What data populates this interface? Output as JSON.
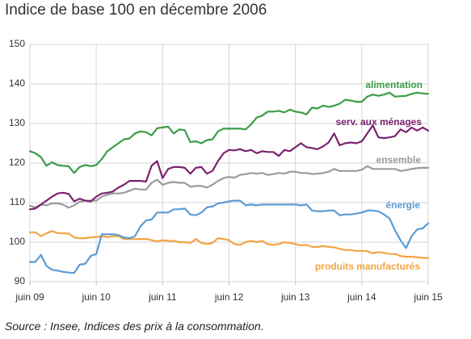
{
  "chart_data": {
    "type": "line",
    "title": "Indice de base 100 en décembre 2006",
    "source": "Source : Insee, Indices des prix à la consommation.",
    "xlabel": "",
    "ylabel": "",
    "ylim": [
      90,
      150
    ],
    "yticks": [
      90,
      100,
      110,
      120,
      130,
      140,
      150
    ],
    "xticks": [
      {
        "date": "2009-06",
        "label": "juin 09"
      },
      {
        "date": "2010-06",
        "label": "juin 10"
      },
      {
        "date": "2011-06",
        "label": "juin 11"
      },
      {
        "date": "2012-06",
        "label": "juin 12"
      },
      {
        "date": "2013-06",
        "label": "juin 13"
      },
      {
        "date": "2014-06",
        "label": "juin 14"
      },
      {
        "date": "2015-06",
        "label": "juin 15"
      }
    ],
    "grid": true,
    "legend": "inline-right",
    "x": [
      "2009-06",
      "2009-07",
      "2009-08",
      "2009-09",
      "2009-10",
      "2009-11",
      "2009-12",
      "2010-01",
      "2010-02",
      "2010-03",
      "2010-04",
      "2010-05",
      "2010-06",
      "2010-07",
      "2010-08",
      "2010-09",
      "2010-10",
      "2010-11",
      "2010-12",
      "2011-01",
      "2011-02",
      "2011-03",
      "2011-04",
      "2011-05",
      "2011-06",
      "2011-07",
      "2011-08",
      "2011-09",
      "2011-10",
      "2011-11",
      "2011-12",
      "2012-01",
      "2012-02",
      "2012-03",
      "2012-04",
      "2012-05",
      "2012-06",
      "2012-07",
      "2012-08",
      "2012-09",
      "2012-10",
      "2012-11",
      "2012-12",
      "2013-01",
      "2013-02",
      "2013-03",
      "2013-04",
      "2013-05",
      "2013-06",
      "2013-07",
      "2013-08",
      "2013-09",
      "2013-10",
      "2013-11",
      "2013-12",
      "2014-01",
      "2014-02",
      "2014-03",
      "2014-04",
      "2014-05",
      "2014-06",
      "2014-07",
      "2014-08",
      "2014-09",
      "2014-10",
      "2014-11",
      "2014-12",
      "2015-01",
      "2015-02",
      "2015-03",
      "2015-04",
      "2015-05",
      "2015-06"
    ],
    "series": [
      {
        "name": "alimentation",
        "color": "#3c9c48",
        "values": [
          123,
          122.5,
          121.5,
          119.3,
          120.2,
          119.5,
          119.3,
          119.2,
          117.5,
          119,
          119.5,
          119.2,
          119.5,
          121,
          123,
          124,
          125,
          126,
          126.2,
          127.5,
          128,
          127.8,
          127,
          128.8,
          129,
          129.2,
          127.5,
          128.5,
          128.3,
          125.3,
          125.5,
          125,
          125.8,
          126,
          128,
          128.7,
          128.7,
          128.7,
          128.7,
          128.5,
          129.8,
          131.5,
          132,
          133,
          133,
          133.2,
          132.8,
          133.5,
          133,
          132.8,
          132.3,
          134,
          133.8,
          134.5,
          134.2,
          134.5,
          135,
          136,
          135.8,
          135.5,
          135.5,
          136.8,
          137.3,
          137,
          137.3,
          137.8,
          136.8,
          136.9,
          137,
          137.5,
          137.8,
          137.6,
          137.5
        ]
      },
      {
        "name": "serv. aux ménages",
        "color": "#7b2270",
        "values": [
          108.3,
          108.5,
          109.5,
          110.5,
          111.5,
          112.3,
          112.5,
          112.2,
          110.3,
          111,
          110.5,
          110.3,
          111.5,
          112.3,
          112.5,
          112.8,
          113.8,
          114.5,
          115.5,
          115.5,
          115.5,
          115.3,
          119.3,
          120.5,
          116.2,
          118.5,
          119,
          119,
          118.8,
          117.3,
          118.8,
          119,
          117.3,
          118,
          120.5,
          122.5,
          123.3,
          123.2,
          123.5,
          123,
          123.3,
          122.5,
          123,
          122.8,
          122.8,
          121.8,
          123.3,
          123,
          124,
          125,
          124,
          123.8,
          123.5,
          124.2,
          125.2,
          127.5,
          124.5,
          125,
          125.2,
          125,
          125.5,
          127.5,
          129.5,
          126.5,
          126.3,
          126.5,
          126.8,
          128.5,
          127.8,
          129,
          128.2,
          129,
          128.2
        ]
      },
      {
        "name": "ensemble",
        "color": "#9b9b9b",
        "values": [
          109.2,
          108.8,
          109.5,
          109.3,
          109.8,
          109.8,
          109.5,
          108.7,
          109.3,
          110.2,
          110.5,
          110.5,
          110.5,
          111.5,
          112,
          112.3,
          112.3,
          112.5,
          113,
          113.5,
          113.3,
          113.3,
          115,
          115.8,
          114.5,
          115,
          115.2,
          115,
          115,
          114,
          114.2,
          114.2,
          113.8,
          114.5,
          115.5,
          116.2,
          116.5,
          116.3,
          117,
          117.2,
          117.5,
          117.3,
          117.5,
          117,
          117.2,
          117.5,
          117.3,
          117.8,
          117.8,
          117.5,
          117.5,
          117.2,
          117.3,
          117.5,
          117.8,
          118.5,
          118,
          118,
          118,
          118,
          118.3,
          119.2,
          118.5,
          118.5,
          118.5,
          118.5,
          118.5,
          118,
          118.2,
          118.5,
          118.7,
          118.8,
          118.8
        ]
      },
      {
        "name": "énergie",
        "color": "#5a9bd4",
        "values": [
          95,
          95,
          96.8,
          94,
          93,
          92.8,
          92.5,
          92.3,
          92.2,
          94.3,
          94.5,
          96.5,
          97,
          102,
          102,
          102,
          101.8,
          101.2,
          101,
          101.5,
          104,
          105.5,
          105.7,
          107.5,
          107.5,
          107.5,
          108.3,
          108.3,
          108.5,
          107,
          106.8,
          107.5,
          108.8,
          109,
          109.8,
          110,
          110.3,
          110.5,
          110.5,
          109.3,
          109.5,
          109.3,
          109.5,
          109.5,
          109.5,
          109.5,
          109.5,
          109.5,
          109.5,
          109.3,
          109.5,
          108,
          107.8,
          107.8,
          108,
          108,
          106.8,
          107,
          107,
          107.2,
          107.5,
          108,
          108,
          107.8,
          107,
          106,
          103,
          100.5,
          98.5,
          101.5,
          103.2,
          103.5,
          104.8
        ]
      },
      {
        "name": "produits manufacturés",
        "color": "#f3a444",
        "values": [
          102.5,
          102.5,
          101.5,
          102.2,
          102.8,
          102.3,
          102.2,
          102.2,
          101.2,
          101,
          101,
          101.2,
          101.3,
          101.5,
          101.3,
          101.5,
          101.5,
          100.8,
          100.8,
          100.8,
          100.8,
          100.8,
          100.5,
          100.2,
          100.5,
          100.3,
          100.3,
          100,
          100,
          99.8,
          100.8,
          99.8,
          99.5,
          99.8,
          101,
          100.8,
          100.5,
          99.5,
          99.3,
          100,
          100.3,
          100,
          100.3,
          99.5,
          99.3,
          99.5,
          100,
          99.8,
          99.5,
          99.2,
          99.3,
          98.8,
          98.8,
          99,
          98.8,
          98.7,
          98.3,
          98,
          98,
          97.8,
          97.8,
          97.7,
          97.2,
          97.5,
          97.3,
          97,
          97,
          96.5,
          96.3,
          96.3,
          96.2,
          96,
          96
        ]
      }
    ]
  }
}
